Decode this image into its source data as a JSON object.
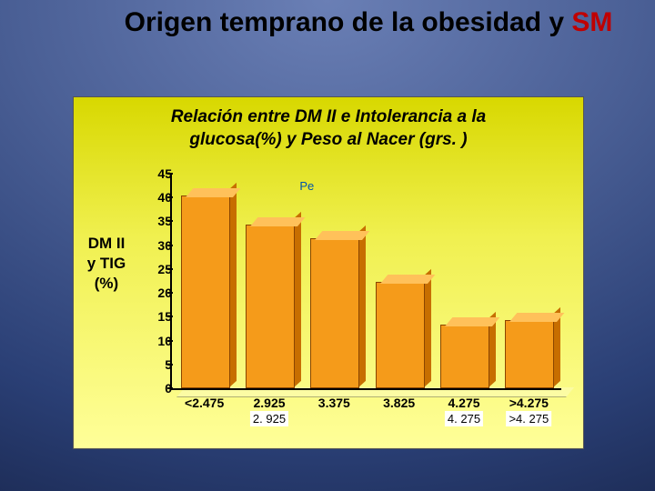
{
  "slide_title_black": "Origen temprano de la obesidad y ",
  "slide_title_red": "SM",
  "chart": {
    "type": "bar",
    "title_line1": "Relación entre DM II e Intolerancia a la",
    "title_line2": "glucosa(%) y Peso al Nacer (grs. )",
    "title_fontsize": 19,
    "ylabel_line1": "DM II",
    "ylabel_line2": "y TIG",
    "ylabel_line3": "(%)",
    "ylim": [
      0,
      45
    ],
    "ytick_step": 5,
    "yticks": [
      "0",
      "5",
      "10",
      "15",
      "20",
      "25",
      "30",
      "35",
      "40",
      "45"
    ],
    "background_gradient": [
      "#d8d800",
      "#ffff99"
    ],
    "bar_face_color": "#f59b1a",
    "bar_top_color": "#ffc15a",
    "bar_side_color": "#c76e00",
    "bar_border_color": "#8a4500",
    "categories": [
      "<2.475",
      "2.925",
      "3.375",
      "3.825",
      "4.275",
      ">4.275"
    ],
    "values": [
      40,
      34,
      31,
      22,
      13,
      14
    ],
    "overlay_labels": [
      {
        "text": "2. 925",
        "col": 1
      },
      {
        "text": "4. 275",
        "col": 4
      },
      {
        "text": ">4. 275",
        "col": 5
      }
    ],
    "stray_text": "Pe"
  }
}
